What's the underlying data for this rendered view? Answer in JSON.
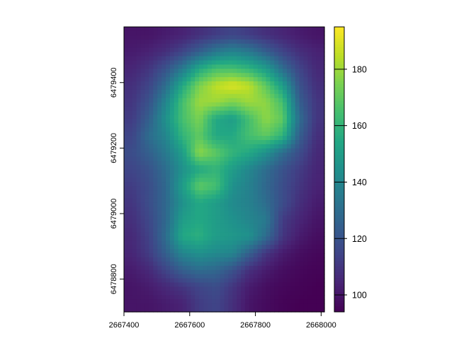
{
  "chart_data": {
    "type": "heatmap",
    "title": "",
    "xlabel": "",
    "ylabel": "",
    "colormap": "viridis",
    "xlim": [
      2667400,
      2668010
    ],
    "ylim": [
      6478700,
      6479570
    ],
    "value_range": [
      94,
      195
    ],
    "x_ticks": [
      2667400,
      2667600,
      2667800,
      2668000
    ],
    "x_tick_labels": [
      "2667400",
      "2667600",
      "2667800",
      "2668000"
    ],
    "y_ticks": [
      6478800,
      6479000,
      6479200,
      6479400
    ],
    "y_tick_labels": [
      "6478800",
      "6479000",
      "6479200",
      "6479400"
    ],
    "legend": {
      "placement": "right",
      "ticks": [
        100,
        120,
        140,
        160,
        180
      ],
      "tick_labels": [
        "100",
        "120",
        "140",
        "160",
        "180"
      ]
    },
    "grid_note_rows_top_to_bottom": true,
    "values": [
      [
        100,
        100,
        102,
        104,
        108,
        112,
        115,
        112,
        108,
        105,
        102,
        100
      ],
      [
        102,
        104,
        108,
        115,
        125,
        135,
        140,
        135,
        125,
        115,
        108,
        104
      ],
      [
        105,
        110,
        120,
        135,
        155,
        165,
        165,
        160,
        150,
        130,
        115,
        106
      ],
      [
        108,
        115,
        130,
        155,
        175,
        185,
        190,
        185,
        170,
        150,
        120,
        108
      ],
      [
        110,
        120,
        140,
        165,
        180,
        180,
        175,
        180,
        178,
        165,
        125,
        110
      ],
      [
        112,
        125,
        145,
        165,
        175,
        155,
        150,
        165,
        178,
        170,
        130,
        110
      ],
      [
        115,
        130,
        140,
        160,
        170,
        155,
        155,
        165,
        170,
        160,
        125,
        108
      ],
      [
        118,
        125,
        135,
        150,
        178,
        170,
        160,
        155,
        145,
        130,
        118,
        106
      ],
      [
        115,
        120,
        130,
        145,
        155,
        160,
        150,
        140,
        130,
        120,
        112,
        105
      ],
      [
        112,
        118,
        128,
        150,
        170,
        165,
        145,
        138,
        128,
        118,
        110,
        104
      ],
      [
        110,
        118,
        128,
        145,
        155,
        150,
        142,
        138,
        130,
        118,
        108,
        102
      ],
      [
        108,
        116,
        128,
        150,
        155,
        150,
        145,
        140,
        135,
        112,
        105,
        100
      ],
      [
        106,
        114,
        130,
        155,
        158,
        150,
        148,
        145,
        130,
        110,
        102,
        98
      ],
      [
        105,
        112,
        125,
        140,
        145,
        142,
        140,
        125,
        110,
        102,
        98,
        96
      ],
      [
        102,
        106,
        115,
        125,
        130,
        128,
        120,
        108,
        102,
        98,
        96,
        95
      ],
      [
        100,
        102,
        106,
        110,
        115,
        118,
        110,
        102,
        98,
        96,
        95,
        94
      ],
      [
        100,
        100,
        102,
        104,
        112,
        115,
        108,
        100,
        97,
        95,
        94,
        94
      ]
    ]
  }
}
